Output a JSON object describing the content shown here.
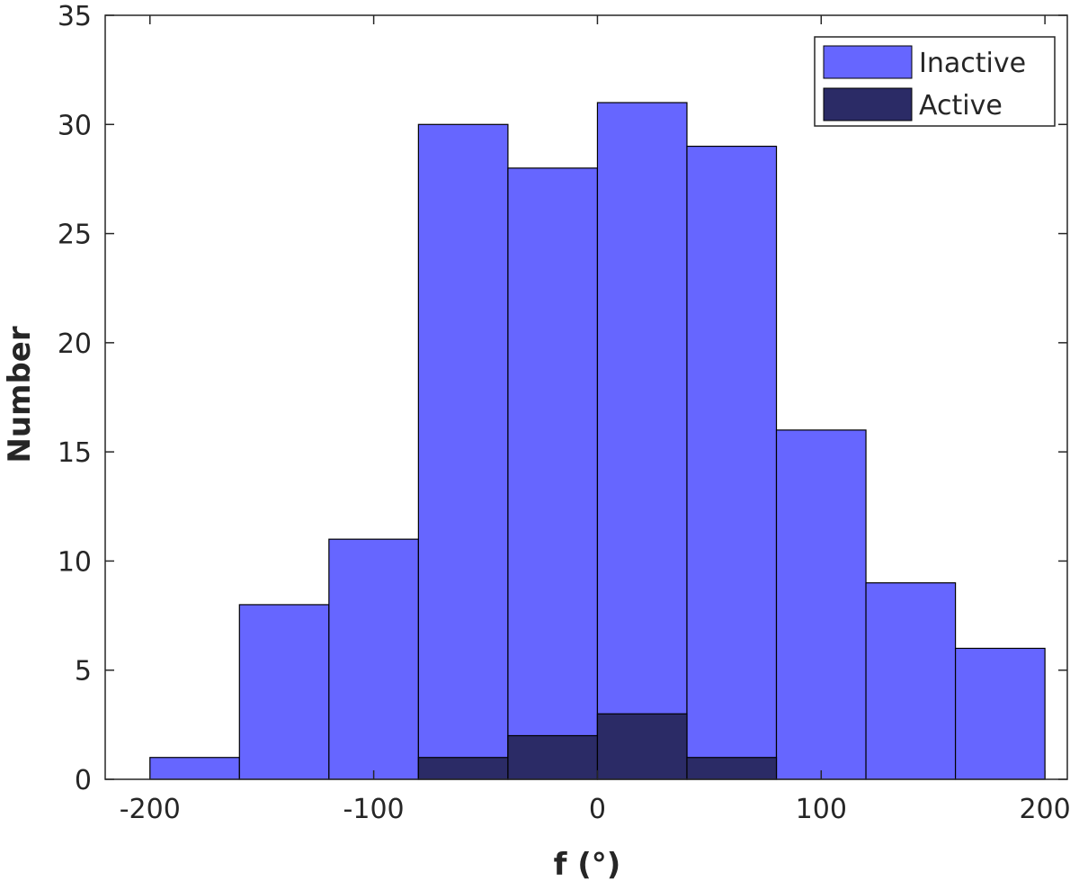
{
  "chart_data": {
    "type": "bar",
    "title": "",
    "xlabel": "f (°)",
    "ylabel": "Number",
    "xlim": [
      -220,
      210
    ],
    "ylim": [
      0,
      35
    ],
    "xticks": [
      -200,
      -100,
      0,
      100,
      200
    ],
    "yticks": [
      0,
      5,
      10,
      15,
      20,
      25,
      30,
      35
    ],
    "xtick_labels": [
      "-200",
      "-100",
      "0",
      "100",
      "200"
    ],
    "ytick_labels": [
      "0",
      "5",
      "10",
      "15",
      "20",
      "25",
      "30",
      "35"
    ],
    "bin_edges": [
      -200,
      -160,
      -120,
      -80,
      -40,
      0,
      40,
      80,
      120,
      160,
      200
    ],
    "grid": false,
    "legend_position": "top-right",
    "series": [
      {
        "name": "Inactive",
        "color": "#6666ff",
        "values": [
          1,
          8,
          11,
          30,
          28,
          31,
          29,
          16,
          9,
          6
        ]
      },
      {
        "name": "Active",
        "color": "#2b2b66",
        "values": [
          0,
          0,
          0,
          1,
          2,
          3,
          1,
          0,
          0,
          0
        ]
      }
    ]
  }
}
